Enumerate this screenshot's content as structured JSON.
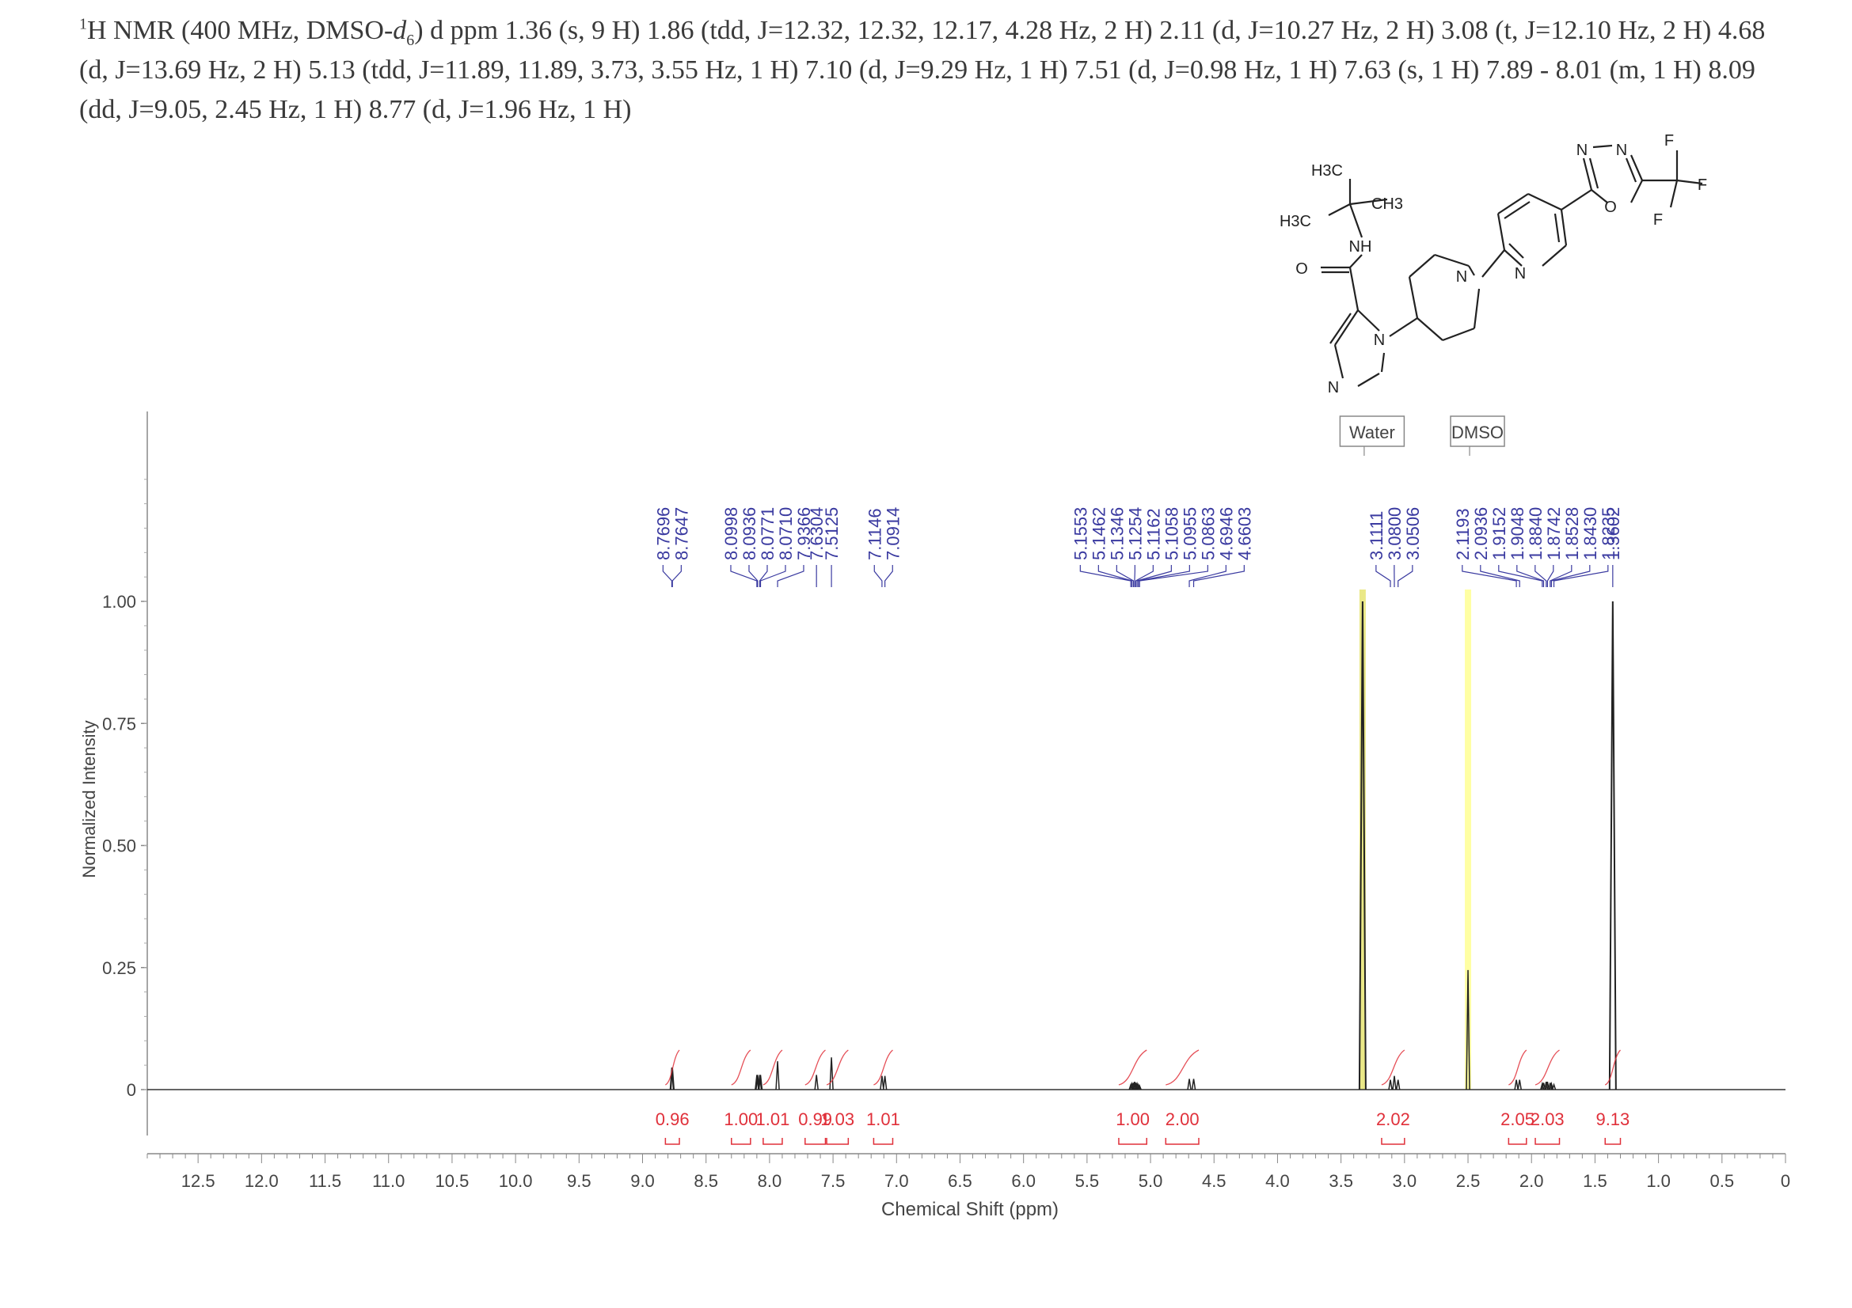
{
  "header": {
    "line1_pre": "H NMR (400 MHz, DMSO-",
    "one": "1",
    "d_letter": "d",
    "six": "6",
    "line1_mid": ") ",
    "delta": "d",
    "line1_post": " ppm 1.36 (s, 9 H) 1.86 (tdd, J=12.32, 12.32, 12.17, 4.28 Hz, 2 H) 2.11 (d, J=10.27 Hz, 2 H) 3.08 (t, J=12.10 Hz, 2 H) 4.68",
    "line2": "(d, J=13.69 Hz, 2 H) 5.13 (tdd, J=11.89, 11.89, 3.73, 3.55 Hz, 1 H) 7.10 (d, J=9.29 Hz, 1 H) 7.51 (d, J=0.98 Hz, 1 H) 7.63 (s, 1 H) 7.89 - 8.01 (m, 1 H) 8.09",
    "line3": "(dd, J=9.05, 2.45 Hz, 1 H) 8.77 (d, J=1.96 Hz, 1 H)"
  },
  "structure": {
    "labels": [
      "H3C",
      "CH3",
      "H3C",
      "NH",
      "O",
      "N",
      "N",
      "N",
      "N",
      "N",
      "N",
      "O",
      "F",
      "F",
      "F"
    ]
  },
  "chart_data": {
    "type": "line",
    "xlabel": "Chemical Shift (ppm)",
    "ylabel": "Normalized Intensity",
    "xlim": [
      12.9,
      0
    ],
    "ylim": [
      -0.13,
      1.4
    ],
    "x_ticks": [
      12.5,
      12.0,
      11.5,
      11.0,
      10.5,
      10.0,
      9.5,
      9.0,
      8.5,
      8.0,
      7.5,
      7.0,
      6.5,
      6.0,
      5.5,
      5.0,
      4.5,
      4.0,
      3.5,
      3.0,
      2.5,
      2.0,
      1.5,
      1.0,
      0.5,
      0
    ],
    "x_tick_labels": [
      "12.5",
      "12.0",
      "11.5",
      "11.0",
      "10.5",
      "10.0",
      "9.5",
      "9.0",
      "8.5",
      "8.0",
      "7.5",
      "7.0",
      "6.5",
      "6.0",
      "5.5",
      "5.0",
      "4.5",
      "4.0",
      "3.5",
      "3.0",
      "2.5",
      "2.0",
      "1.5",
      "1.0",
      "0.5",
      "0"
    ],
    "y_ticks": [
      0,
      0.25,
      0.5,
      0.75,
      1.0
    ],
    "y_tick_labels": [
      "0",
      "0.25",
      "0.50",
      "0.75",
      "1.00"
    ],
    "solvent_labels": [
      {
        "text": "Water",
        "ppm": 3.33
      },
      {
        "text": "DMSO",
        "ppm": 2.5
      }
    ],
    "solvent_highlights": [
      {
        "ppm": 3.33,
        "color": "#e8e67a"
      },
      {
        "ppm": 2.5,
        "color": "#ffff99"
      }
    ],
    "peaks": [
      {
        "ppm": 8.7696,
        "h": 0.045
      },
      {
        "ppm": 8.7647,
        "h": 0.045
      },
      {
        "ppm": 8.0998,
        "h": 0.03
      },
      {
        "ppm": 8.0936,
        "h": 0.03
      },
      {
        "ppm": 8.0771,
        "h": 0.03
      },
      {
        "ppm": 8.071,
        "h": 0.03
      },
      {
        "ppm": 7.9366,
        "h": 0.058
      },
      {
        "ppm": 7.6304,
        "h": 0.03
      },
      {
        "ppm": 7.5125,
        "h": 0.066
      },
      {
        "ppm": 7.1146,
        "h": 0.028
      },
      {
        "ppm": 7.0914,
        "h": 0.028
      },
      {
        "ppm": 5.1553,
        "h": 0.01
      },
      {
        "ppm": 5.1462,
        "h": 0.012
      },
      {
        "ppm": 5.1346,
        "h": 0.014
      },
      {
        "ppm": 5.1254,
        "h": 0.016
      },
      {
        "ppm": 5.1162,
        "h": 0.014
      },
      {
        "ppm": 5.1058,
        "h": 0.012
      },
      {
        "ppm": 5.0955,
        "h": 0.01
      },
      {
        "ppm": 5.0863,
        "h": 0.008
      },
      {
        "ppm": 4.6946,
        "h": 0.022
      },
      {
        "ppm": 4.6603,
        "h": 0.022
      },
      {
        "ppm": 3.33,
        "h": 1.0
      },
      {
        "ppm": 3.1111,
        "h": 0.02
      },
      {
        "ppm": 3.08,
        "h": 0.028
      },
      {
        "ppm": 3.0506,
        "h": 0.02
      },
      {
        "ppm": 2.5,
        "h": 0.245
      },
      {
        "ppm": 2.1193,
        "h": 0.02
      },
      {
        "ppm": 2.0936,
        "h": 0.02
      },
      {
        "ppm": 1.9152,
        "h": 0.012
      },
      {
        "ppm": 1.9048,
        "h": 0.014
      },
      {
        "ppm": 1.884,
        "h": 0.016
      },
      {
        "ppm": 1.8742,
        "h": 0.016
      },
      {
        "ppm": 1.8528,
        "h": 0.014
      },
      {
        "ppm": 1.843,
        "h": 0.012
      },
      {
        "ppm": 1.8235,
        "h": 0.01
      },
      {
        "ppm": 1.3602,
        "h": 1.0
      }
    ],
    "peak_label_groups": [
      {
        "labels": [
          "8.7696",
          "8.7647"
        ],
        "ppm": [
          8.7696,
          8.7647
        ]
      },
      {
        "labels": [
          "8.0998",
          "8.0936",
          "8.0771",
          "8.0710",
          "7.9366"
        ],
        "ppm": [
          8.0998,
          8.0936,
          8.0771,
          8.071,
          7.9366
        ]
      },
      {
        "labels": [
          "7.6304"
        ],
        "ppm": [
          7.6304
        ]
      },
      {
        "labels": [
          "7.5125"
        ],
        "ppm": [
          7.5125
        ]
      },
      {
        "labels": [
          "7.1146",
          "7.0914"
        ],
        "ppm": [
          7.1146,
          7.0914
        ]
      },
      {
        "labels": [
          "5.1553",
          "5.1462",
          "5.1346",
          "5.1254",
          "5.1162",
          "5.1058",
          "5.0955",
          "5.0863",
          "4.6946",
          "4.6603"
        ],
        "ppm": [
          5.1553,
          5.1462,
          5.1346,
          5.1254,
          5.1162,
          5.1058,
          5.0955,
          5.0863,
          4.6946,
          4.6603
        ]
      },
      {
        "labels": [
          "3.1111",
          "3.0800",
          "3.0506"
        ],
        "ppm": [
          3.1111,
          3.08,
          3.0506
        ]
      },
      {
        "labels": [
          "2.1193",
          "2.0936",
          "1.9152",
          "1.9048",
          "1.8840",
          "1.8742",
          "1.8528",
          "1.8430",
          "1.8235"
        ],
        "ppm": [
          2.1193,
          2.0936,
          1.9152,
          1.9048,
          1.884,
          1.8742,
          1.8528,
          1.843,
          1.8235
        ]
      },
      {
        "labels": [
          "1.3602"
        ],
        "ppm": [
          1.3602
        ]
      }
    ],
    "integrals": [
      {
        "value": "0.96",
        "from": 8.82,
        "to": 8.71
      },
      {
        "value": "1.00",
        "from": 8.3,
        "to": 8.15
      },
      {
        "value": "1.01",
        "from": 8.05,
        "to": 7.9
      },
      {
        "value": "0.99",
        "from": 7.72,
        "to": 7.56
      },
      {
        "value": "1.03",
        "from": 7.55,
        "to": 7.38
      },
      {
        "value": "1.01",
        "from": 7.18,
        "to": 7.03
      },
      {
        "value": "1.00",
        "from": 5.25,
        "to": 5.03
      },
      {
        "value": "2.00",
        "from": 4.88,
        "to": 4.62
      },
      {
        "value": "2.02",
        "from": 3.18,
        "to": 3.0
      },
      {
        "value": "2.05",
        "from": 2.18,
        "to": 2.04
      },
      {
        "value": "2.03",
        "from": 1.97,
        "to": 1.78
      },
      {
        "value": "9.13",
        "from": 1.42,
        "to": 1.3
      }
    ]
  }
}
